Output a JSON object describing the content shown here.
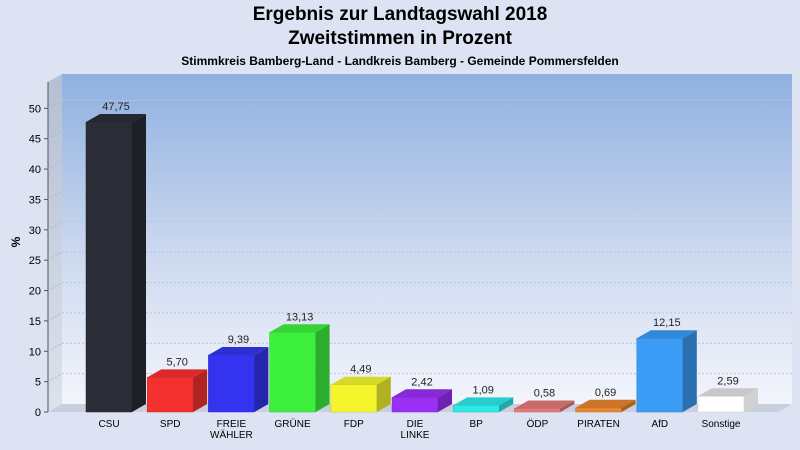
{
  "header": {
    "title": "Ergebnis zur Landtagswahl 2018",
    "subtitle": "Zweitstimmen in Prozent",
    "caption": "Stimmkreis Bamberg-Land - Landkreis Bamberg - Gemeinde Pommersfelden"
  },
  "chart_data": {
    "type": "bar",
    "title": "Ergebnis zur Landtagswahl 2018",
    "subtitle": "Zweitstimmen in Prozent",
    "xlabel": "",
    "ylabel": "%",
    "ylim": [
      0,
      55
    ],
    "yticks": [
      0,
      5,
      10,
      15,
      20,
      25,
      30,
      35,
      40,
      45,
      50
    ],
    "grid": true,
    "categories": [
      "CSU",
      "SPD",
      "FREIE\nWÄHLER",
      "GRÜNE",
      "FDP",
      "DIE\nLINKE",
      "BP",
      "ÖDP",
      "PIRATEN",
      "AfD",
      "Sonstige"
    ],
    "values": [
      47.75,
      5.7,
      9.39,
      13.13,
      4.49,
      2.42,
      1.09,
      0.58,
      0.69,
      12.15,
      2.59
    ],
    "value_labels": [
      "47,75",
      "5,70",
      "9,39",
      "13,13",
      "4,49",
      "2,42",
      "1,09",
      "0,58",
      "0,69",
      "12,15",
      "2,59"
    ],
    "colors": [
      "#2a2d38",
      "#f53030",
      "#3434f0",
      "#3ef03e",
      "#f5f52e",
      "#9a2ff5",
      "#2ee8e8",
      "#e67a7a",
      "#e8852e",
      "#3a9cf5",
      "#ffffff"
    ]
  }
}
